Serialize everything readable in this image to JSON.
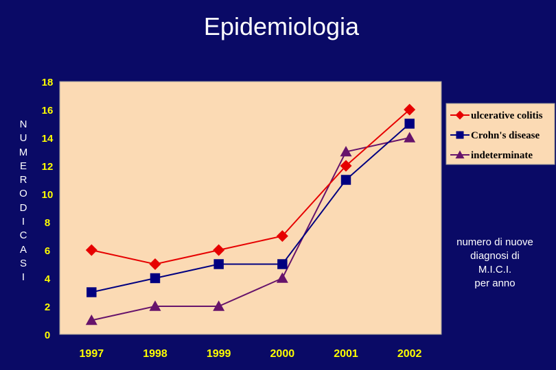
{
  "page": {
    "title": "Epidemiologia"
  },
  "side_label": "NUMERO DI CASI",
  "note_lines": [
    "numero di nuove",
    "diagnosi di",
    "M.I.C.I.",
    "per anno"
  ],
  "colors": {
    "background": "#0a0a66",
    "plot_area": "#fbdab4",
    "tick_text": "#ffff00",
    "ulcerative_colitis": "#e60000",
    "crohns_disease": "#000080",
    "indeterminate": "#66136b"
  },
  "chart_data": {
    "type": "line",
    "title": "Epidemiologia",
    "xlabel": "",
    "ylabel": "NUMERO DI CASI",
    "categories": [
      "1997",
      "1998",
      "1999",
      "2000",
      "2001",
      "2002"
    ],
    "ylim": [
      0,
      18
    ],
    "yticks": [
      0,
      2,
      4,
      6,
      8,
      10,
      12,
      14,
      16,
      18
    ],
    "grid": false,
    "legend_position": "top-right",
    "series": [
      {
        "name": "ulcerative colitis",
        "marker": "diamond",
        "color": "#e60000",
        "values": [
          6,
          5,
          6,
          7,
          12,
          16
        ]
      },
      {
        "name": "Crohn's disease",
        "marker": "square",
        "color": "#000080",
        "values": [
          3,
          4,
          5,
          5,
          11,
          15
        ]
      },
      {
        "name": "indeterminate",
        "marker": "triangle",
        "color": "#66136b",
        "values": [
          1,
          2,
          2,
          4,
          13,
          14
        ]
      }
    ]
  }
}
